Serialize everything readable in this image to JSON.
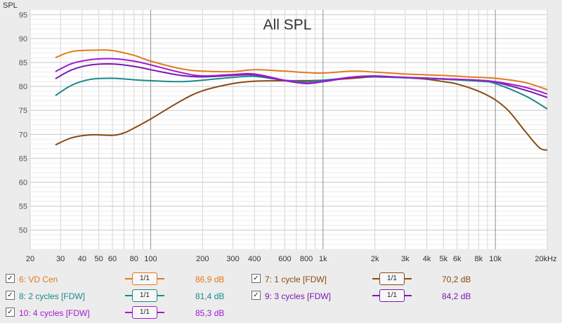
{
  "chart_data": {
    "type": "line",
    "title": "All SPL",
    "ylabel": "SPL",
    "xlabel_unit": "Hz",
    "x_scale": "log",
    "xlim": [
      20,
      20000
    ],
    "ylim": [
      46,
      96
    ],
    "grid": true,
    "y_ticks": [
      50,
      55,
      60,
      65,
      70,
      75,
      80,
      85,
      90,
      95
    ],
    "x_ticks": [
      {
        "v": 20,
        "label": "20"
      },
      {
        "v": 30,
        "label": "30"
      },
      {
        "v": 40,
        "label": "40"
      },
      {
        "v": 50,
        "label": "50"
      },
      {
        "v": 60,
        "label": "60"
      },
      {
        "v": 80,
        "label": "80"
      },
      {
        "v": 100,
        "label": "100"
      },
      {
        "v": 200,
        "label": "200"
      },
      {
        "v": 300,
        "label": "300"
      },
      {
        "v": 400,
        "label": "400"
      },
      {
        "v": 600,
        "label": "600"
      },
      {
        "v": 800,
        "label": "800"
      },
      {
        "v": 1000,
        "label": "1k"
      },
      {
        "v": 2000,
        "label": "2k"
      },
      {
        "v": 3000,
        "label": "3k"
      },
      {
        "v": 4000,
        "label": "4k"
      },
      {
        "v": 5000,
        "label": "5k"
      },
      {
        "v": 6000,
        "label": "6k"
      },
      {
        "v": 8000,
        "label": "8k"
      },
      {
        "v": 10000,
        "label": "10k"
      },
      {
        "v": 20000,
        "label": "20kHz"
      }
    ],
    "series": [
      {
        "name": "6: VD Cen",
        "color": "#e07b1a",
        "points": [
          [
            28,
            86
          ],
          [
            35,
            87.3
          ],
          [
            50,
            87.6
          ],
          [
            60,
            87.5
          ],
          [
            80,
            86.5
          ],
          [
            100,
            85.3
          ],
          [
            150,
            83.7
          ],
          [
            200,
            83.2
          ],
          [
            300,
            83.1
          ],
          [
            400,
            83.5
          ],
          [
            600,
            83.2
          ],
          [
            800,
            82.9
          ],
          [
            1000,
            82.8
          ],
          [
            1500,
            83.2
          ],
          [
            2000,
            83
          ],
          [
            3000,
            82.6
          ],
          [
            5000,
            82.3
          ],
          [
            7000,
            82
          ],
          [
            10000,
            81.7
          ],
          [
            15000,
            80.8
          ],
          [
            20000,
            79.3
          ]
        ]
      },
      {
        "name": "7: 1 cycle [FDW]",
        "color": "#8b4a12",
        "points": [
          [
            28,
            67.8
          ],
          [
            35,
            69.3
          ],
          [
            45,
            69.9
          ],
          [
            60,
            69.8
          ],
          [
            70,
            70.3
          ],
          [
            80,
            71.3
          ],
          [
            100,
            73.2
          ],
          [
            150,
            77
          ],
          [
            200,
            79.1
          ],
          [
            300,
            80.6
          ],
          [
            400,
            81.1
          ],
          [
            600,
            81.2
          ],
          [
            800,
            81.2
          ],
          [
            1000,
            81.3
          ],
          [
            1500,
            81.7
          ],
          [
            2000,
            82
          ],
          [
            3000,
            81.8
          ],
          [
            4000,
            81.5
          ],
          [
            5000,
            81
          ],
          [
            6000,
            80.5
          ],
          [
            8000,
            79
          ],
          [
            10000,
            77.2
          ],
          [
            12000,
            74.8
          ],
          [
            15000,
            70.5
          ],
          [
            18000,
            67.2
          ],
          [
            20000,
            66.7
          ]
        ]
      },
      {
        "name": "8: 2 cycles [FDW]",
        "color": "#1a8a8a",
        "points": [
          [
            28,
            78.1
          ],
          [
            35,
            80.3
          ],
          [
            45,
            81.5
          ],
          [
            60,
            81.7
          ],
          [
            80,
            81.4
          ],
          [
            100,
            81.2
          ],
          [
            150,
            81
          ],
          [
            200,
            81.3
          ],
          [
            300,
            81.9
          ],
          [
            400,
            82.1
          ],
          [
            600,
            81.3
          ],
          [
            800,
            81
          ],
          [
            1000,
            81.3
          ],
          [
            1500,
            81.9
          ],
          [
            2000,
            82
          ],
          [
            3000,
            81.8
          ],
          [
            5000,
            81.5
          ],
          [
            8000,
            81.1
          ],
          [
            10000,
            80.6
          ],
          [
            15000,
            78
          ],
          [
            20000,
            75.3
          ]
        ]
      },
      {
        "name": "9: 3 cycles [FDW]",
        "color": "#7a1ab0",
        "points": [
          [
            28,
            81.6
          ],
          [
            35,
            83.5
          ],
          [
            45,
            84.5
          ],
          [
            60,
            84.7
          ],
          [
            80,
            84.2
          ],
          [
            100,
            83.5
          ],
          [
            150,
            82.3
          ],
          [
            200,
            82
          ],
          [
            300,
            82.3
          ],
          [
            400,
            82.4
          ],
          [
            600,
            81.2
          ],
          [
            800,
            80.6
          ],
          [
            1000,
            81
          ],
          [
            1500,
            81.9
          ],
          [
            2000,
            82.1
          ],
          [
            3000,
            81.9
          ],
          [
            5000,
            81.6
          ],
          [
            8000,
            81.3
          ],
          [
            10000,
            80.9
          ],
          [
            15000,
            79.2
          ],
          [
            20000,
            77.7
          ]
        ]
      },
      {
        "name": "10: 4 cycles [FDW]",
        "color": "#a31ad1",
        "points": [
          [
            28,
            83.1
          ],
          [
            35,
            84.8
          ],
          [
            45,
            85.6
          ],
          [
            60,
            85.8
          ],
          [
            80,
            85.3
          ],
          [
            100,
            84.5
          ],
          [
            150,
            82.9
          ],
          [
            200,
            82.2
          ],
          [
            300,
            82.5
          ],
          [
            400,
            82.6
          ],
          [
            600,
            81.3
          ],
          [
            800,
            80.7
          ],
          [
            1000,
            81.1
          ],
          [
            1500,
            82
          ],
          [
            2000,
            82.2
          ],
          [
            3000,
            81.9
          ],
          [
            5000,
            81.6
          ],
          [
            8000,
            81.3
          ],
          [
            10000,
            81
          ],
          [
            15000,
            79.8
          ],
          [
            20000,
            78.4
          ]
        ]
      }
    ]
  },
  "legend": {
    "button_label": "1/1",
    "items": [
      {
        "name": "6: VD Cen",
        "value": "86,9 dB",
        "color": "#e07b1a",
        "checked": "✓"
      },
      {
        "name": "7: 1 cycle [FDW]",
        "value": "70,2 dB",
        "color": "#8b4a12",
        "checked": "✓"
      },
      {
        "name": "8: 2 cycles [FDW]",
        "value": "81,4 dB",
        "color": "#1a8a8a",
        "checked": "✓"
      },
      {
        "name": "9: 3 cycles [FDW]",
        "value": "84,2 dB",
        "color": "#7a1ab0",
        "checked": "✓"
      },
      {
        "name": "10: 4 cycles [FDW]",
        "value": "85,3 dB",
        "color": "#a31ad1",
        "checked": "✓"
      }
    ]
  }
}
